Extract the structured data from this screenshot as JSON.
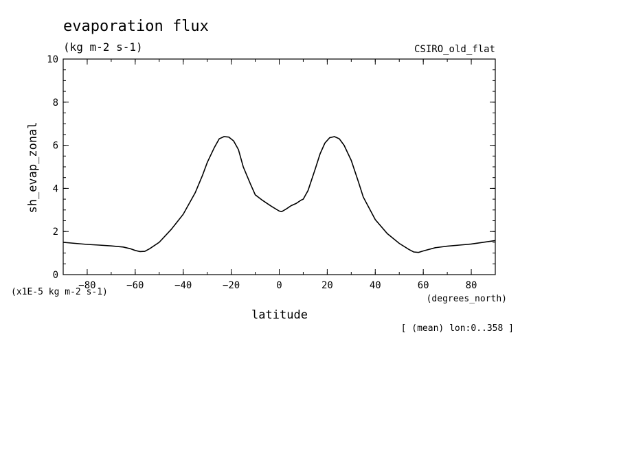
{
  "chart_data": {
    "type": "line",
    "title": "evaporation flux",
    "subtitle": "(kg m-2 s-1)",
    "dataset_label": "CSIRO_old_flat",
    "xlabel": "latitude",
    "xunits": "(degrees_north)",
    "ylabel": "sh_evap_zonal",
    "yunits": "(x1E-5 kg m-2 s-1)",
    "footnote": "[ (mean) lon:0..358 ]",
    "xlim": [
      -90,
      90
    ],
    "ylim": [
      0,
      10
    ],
    "xticks": [
      -80,
      -60,
      -40,
      -20,
      0,
      20,
      40,
      60,
      80
    ],
    "yticks": [
      0,
      2,
      4,
      6,
      8,
      10
    ],
    "grid": false,
    "series": [
      {
        "x": [
          -90,
          -85,
          -80,
          -75,
          -70,
          -65,
          -62,
          -60,
          -58,
          -56,
          -54,
          -50,
          -45,
          -40,
          -35,
          -32,
          -30,
          -27,
          -25,
          -23,
          -21,
          -19,
          -17,
          -15,
          -12,
          -10,
          -7,
          -5,
          -3,
          0,
          1,
          3,
          5,
          7,
          9,
          10,
          12,
          15,
          17,
          19,
          21,
          23,
          25,
          27,
          30,
          33,
          35,
          40,
          45,
          50,
          54,
          56,
          58,
          60,
          65,
          70,
          75,
          80,
          85,
          90
        ],
        "y": [
          1.5,
          1.45,
          1.4,
          1.37,
          1.33,
          1.28,
          1.2,
          1.12,
          1.07,
          1.08,
          1.2,
          1.5,
          2.1,
          2.8,
          3.8,
          4.6,
          5.2,
          5.9,
          6.3,
          6.4,
          6.38,
          6.2,
          5.8,
          5.0,
          4.2,
          3.7,
          3.45,
          3.3,
          3.15,
          2.95,
          2.92,
          3.05,
          3.2,
          3.3,
          3.45,
          3.5,
          3.9,
          4.9,
          5.6,
          6.1,
          6.35,
          6.4,
          6.3,
          6.0,
          5.3,
          4.3,
          3.6,
          2.55,
          1.9,
          1.45,
          1.17,
          1.05,
          1.03,
          1.1,
          1.25,
          1.32,
          1.37,
          1.42,
          1.5,
          1.58
        ]
      }
    ]
  }
}
